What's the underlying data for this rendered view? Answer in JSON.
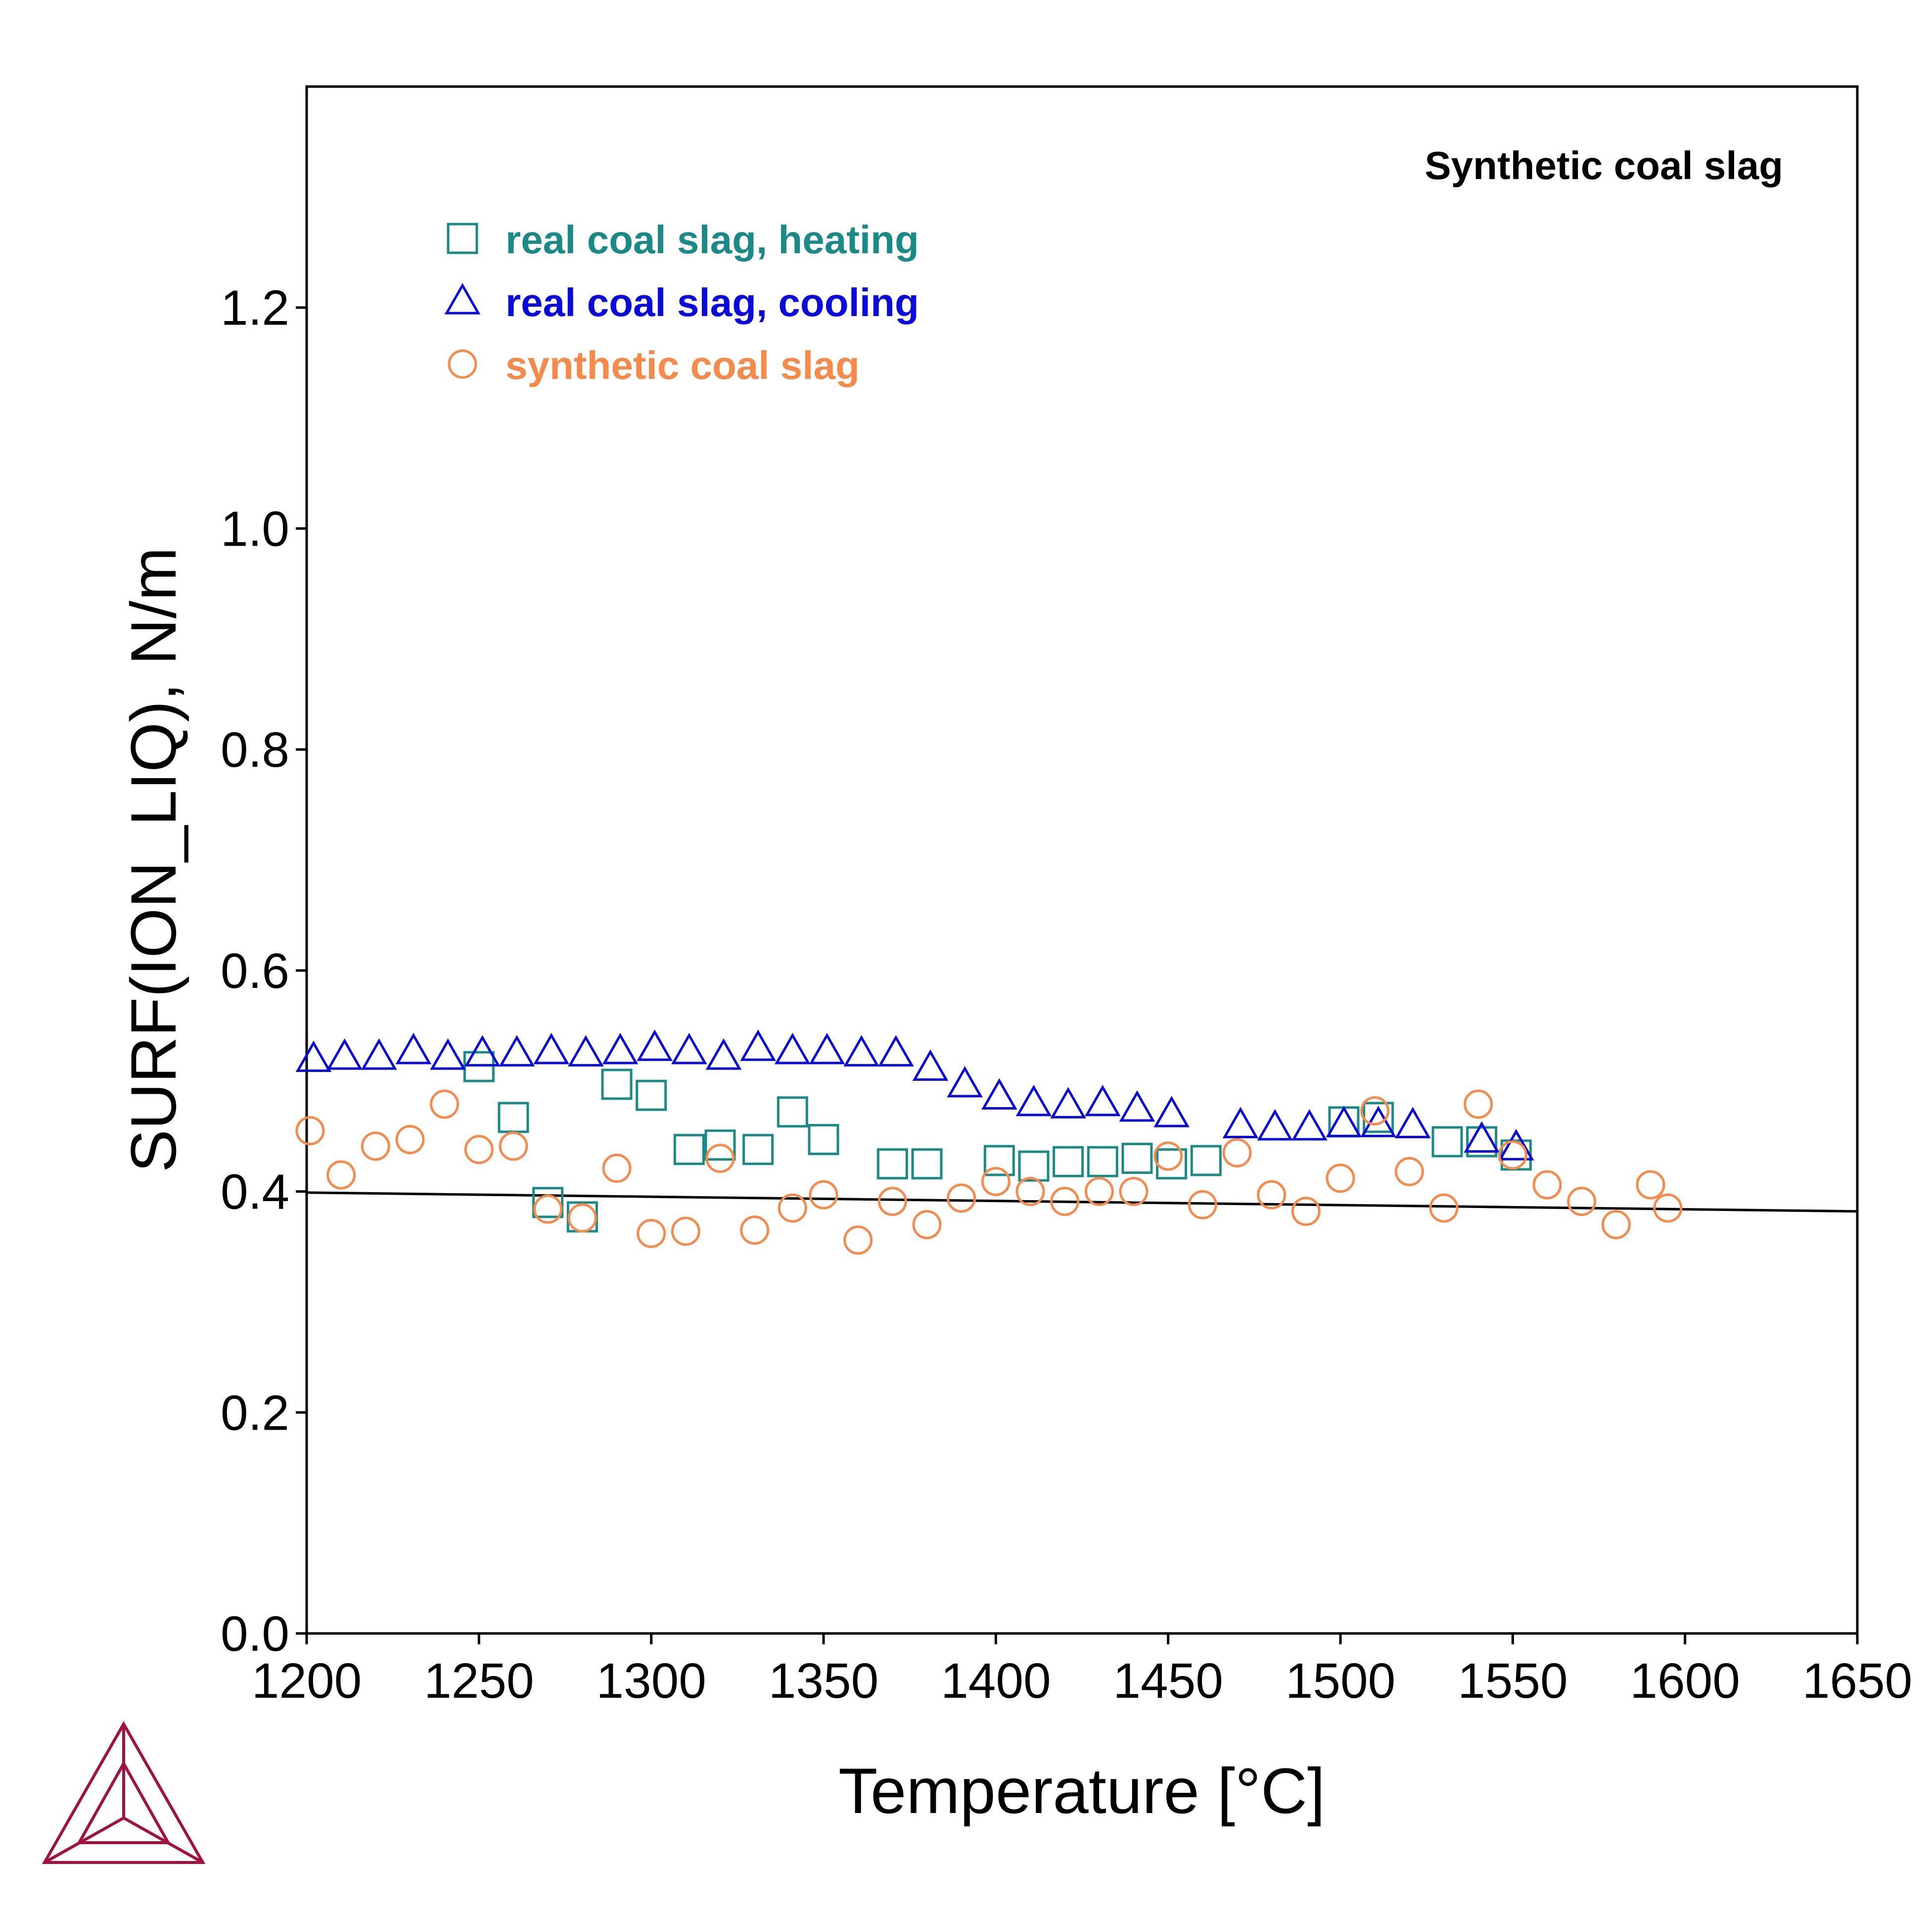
{
  "chart_data": {
    "type": "scatter",
    "xlabel": "Temperature [°C]",
    "ylabel": "SURF(ION_LIQ), N/m",
    "xlim": [
      1200,
      1650
    ],
    "ylim": [
      0,
      1.4
    ],
    "x_ticks": [
      "1200",
      "1250",
      "1300",
      "1350",
      "1400",
      "1450",
      "1500",
      "1550",
      "1600",
      "1650"
    ],
    "y_ticks": [
      "0.0",
      "0.2",
      "0.4",
      "0.6",
      "0.8",
      "1.0",
      "1.2"
    ],
    "grid": false,
    "legend_position": "top-left",
    "annotation": "Synthetic coal slag",
    "series": [
      {
        "name": "real coal slag, heating",
        "marker": "square",
        "color": "#1a8a86",
        "points": [
          [
            1250,
            0.513
          ],
          [
            1260,
            0.467
          ],
          [
            1270,
            0.39
          ],
          [
            1280,
            0.377
          ],
          [
            1290,
            0.497
          ],
          [
            1300,
            0.487
          ],
          [
            1311,
            0.438
          ],
          [
            1320,
            0.442
          ],
          [
            1331,
            0.438
          ],
          [
            1341,
            0.472
          ],
          [
            1350,
            0.447
          ],
          [
            1370,
            0.425
          ],
          [
            1380,
            0.425
          ],
          [
            1401,
            0.428
          ],
          [
            1411,
            0.423
          ],
          [
            1421,
            0.427
          ],
          [
            1431,
            0.427
          ],
          [
            1441,
            0.43
          ],
          [
            1451,
            0.425
          ],
          [
            1461,
            0.428
          ],
          [
            1501,
            0.463
          ],
          [
            1511,
            0.467
          ],
          [
            1531,
            0.445
          ],
          [
            1541,
            0.445
          ],
          [
            1551,
            0.433
          ]
        ]
      },
      {
        "name": "real coal slag, cooling",
        "marker": "triangle",
        "color": "#0a0adc",
        "points": [
          [
            1202,
            0.52
          ],
          [
            1211,
            0.522
          ],
          [
            1221,
            0.522
          ],
          [
            1231,
            0.527
          ],
          [
            1241,
            0.522
          ],
          [
            1251,
            0.525
          ],
          [
            1261,
            0.525
          ],
          [
            1271,
            0.527
          ],
          [
            1281,
            0.525
          ],
          [
            1291,
            0.527
          ],
          [
            1301,
            0.53
          ],
          [
            1311,
            0.527
          ],
          [
            1321,
            0.522
          ],
          [
            1331,
            0.53
          ],
          [
            1341,
            0.527
          ],
          [
            1351,
            0.527
          ],
          [
            1361,
            0.525
          ],
          [
            1371,
            0.525
          ],
          [
            1381,
            0.512
          ],
          [
            1391,
            0.497
          ],
          [
            1401,
            0.486
          ],
          [
            1411,
            0.48
          ],
          [
            1421,
            0.478
          ],
          [
            1431,
            0.48
          ],
          [
            1441,
            0.475
          ],
          [
            1451,
            0.47
          ],
          [
            1471,
            0.46
          ],
          [
            1481,
            0.458
          ],
          [
            1491,
            0.458
          ],
          [
            1501,
            0.461
          ],
          [
            1511,
            0.461
          ],
          [
            1521,
            0.46
          ],
          [
            1541,
            0.447
          ],
          [
            1551,
            0.44
          ]
        ]
      },
      {
        "name": "synthetic coal slag",
        "marker": "circle",
        "color": "#f58a4a",
        "points": [
          [
            1201,
            0.455
          ],
          [
            1210,
            0.415
          ],
          [
            1220,
            0.441
          ],
          [
            1230,
            0.447
          ],
          [
            1240,
            0.479
          ],
          [
            1250,
            0.438
          ],
          [
            1260,
            0.441
          ],
          [
            1270,
            0.384
          ],
          [
            1280,
            0.376
          ],
          [
            1290,
            0.421
          ],
          [
            1300,
            0.362
          ],
          [
            1310,
            0.364
          ],
          [
            1320,
            0.43
          ],
          [
            1330,
            0.365
          ],
          [
            1341,
            0.385
          ],
          [
            1350,
            0.397
          ],
          [
            1360,
            0.356
          ],
          [
            1370,
            0.391
          ],
          [
            1380,
            0.37
          ],
          [
            1390,
            0.394
          ],
          [
            1400,
            0.409
          ],
          [
            1410,
            0.4
          ],
          [
            1420,
            0.391
          ],
          [
            1430,
            0.4
          ],
          [
            1440,
            0.4
          ],
          [
            1450,
            0.432
          ],
          [
            1460,
            0.388
          ],
          [
            1470,
            0.435
          ],
          [
            1480,
            0.397
          ],
          [
            1490,
            0.382
          ],
          [
            1500,
            0.412
          ],
          [
            1510,
            0.473
          ],
          [
            1520,
            0.418
          ],
          [
            1530,
            0.385
          ],
          [
            1540,
            0.479
          ],
          [
            1550,
            0.433
          ],
          [
            1560,
            0.406
          ],
          [
            1570,
            0.391
          ],
          [
            1580,
            0.37
          ],
          [
            1590,
            0.406
          ],
          [
            1595,
            0.385
          ]
        ]
      },
      {
        "name": "",
        "type": "line",
        "color": "#000000",
        "points": [
          [
            1200,
            0.399
          ],
          [
            1650,
            0.382
          ]
        ]
      }
    ]
  }
}
